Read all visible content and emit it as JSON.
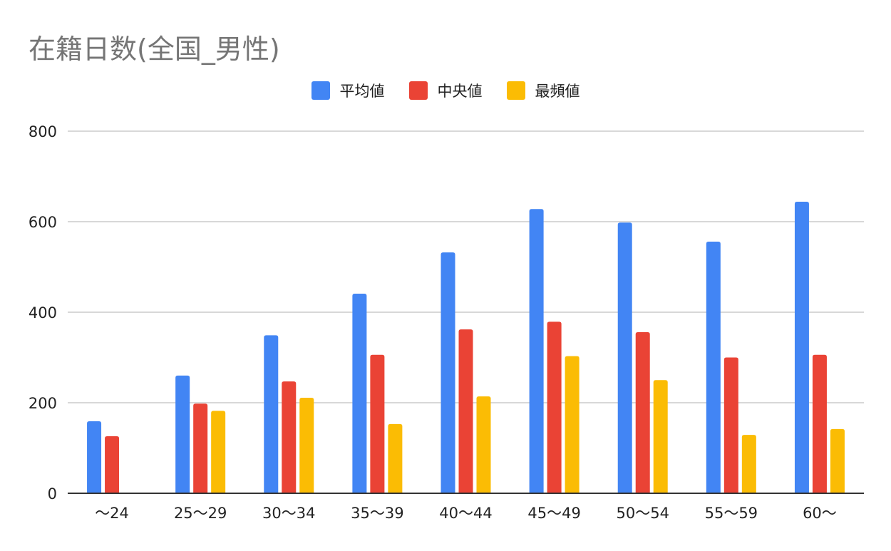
{
  "chart_data": {
    "type": "bar",
    "title": "在籍日数(全国_男性)",
    "categories": [
      "～24",
      "25～29",
      "30～34",
      "35～39",
      "40～44",
      "45～49",
      "50～54",
      "55～59",
      "60～"
    ],
    "series": [
      {
        "name": "平均値",
        "color": "#4285f4",
        "values": [
          159,
          260,
          349,
          441,
          532,
          628,
          598,
          556,
          644
        ]
      },
      {
        "name": "中央値",
        "color": "#ea4335",
        "values": [
          126,
          198,
          247,
          306,
          362,
          379,
          356,
          300,
          306
        ]
      },
      {
        "name": "最頻値",
        "color": "#fbbc04",
        "values": [
          0,
          182,
          211,
          153,
          214,
          303,
          250,
          129,
          142
        ]
      }
    ],
    "ylim": [
      0,
      800
    ],
    "yticks": [
      0,
      200,
      400,
      600,
      800
    ],
    "grid": true,
    "legend_position": "top-center"
  }
}
